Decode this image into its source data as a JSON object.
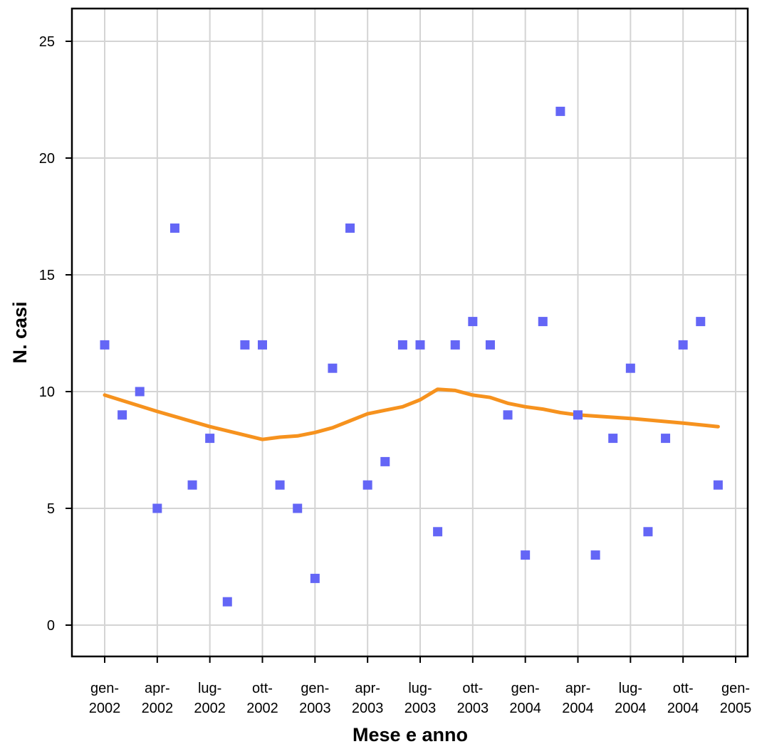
{
  "chart_data": {
    "type": "scatter",
    "xlabel": "Mese e anno",
    "ylabel": "N. casi",
    "ylim": [
      -2,
      26
    ],
    "yticks": [
      0,
      5,
      10,
      15,
      20,
      25
    ],
    "xlim": [
      "2001-11",
      "2005-02"
    ],
    "xticks": [
      {
        "date": "2002-01",
        "label": [
          "gen-",
          "2002"
        ]
      },
      {
        "date": "2002-04",
        "label": [
          "apr-",
          "2002"
        ]
      },
      {
        "date": "2002-07",
        "label": [
          "lug-",
          "2002"
        ]
      },
      {
        "date": "2002-10",
        "label": [
          "ott-",
          "2002"
        ]
      },
      {
        "date": "2003-01",
        "label": [
          "gen-",
          "2003"
        ]
      },
      {
        "date": "2003-04",
        "label": [
          "apr-",
          "2003"
        ]
      },
      {
        "date": "2003-07",
        "label": [
          "lug-",
          "2003"
        ]
      },
      {
        "date": "2003-10",
        "label": [
          "ott-",
          "2003"
        ]
      },
      {
        "date": "2004-01",
        "label": [
          "gen-",
          "2004"
        ]
      },
      {
        "date": "2004-04",
        "label": [
          "apr-",
          "2004"
        ]
      },
      {
        "date": "2004-07",
        "label": [
          "lug-",
          "2004"
        ]
      },
      {
        "date": "2004-10",
        "label": [
          "ott-",
          "2004"
        ]
      },
      {
        "date": "2005-01",
        "label": [
          "gen-",
          "2005"
        ]
      }
    ],
    "grid": true,
    "colors": {
      "points": "#6466f6",
      "trend": "#f6921e",
      "grid": "#d4d4d4",
      "axis": "#000000"
    },
    "series": [
      {
        "kind": "points",
        "x": [
          "2002-01",
          "2002-02",
          "2002-03",
          "2002-04",
          "2002-05",
          "2002-06",
          "2002-07",
          "2002-08",
          "2002-09",
          "2002-10",
          "2002-11",
          "2002-12",
          "2003-01",
          "2003-02",
          "2003-03",
          "2003-04",
          "2003-05",
          "2003-06",
          "2003-07",
          "2003-08",
          "2003-09",
          "2003-10",
          "2003-11",
          "2003-12",
          "2004-01",
          "2004-02",
          "2004-03",
          "2004-04",
          "2004-05",
          "2004-06",
          "2004-07",
          "2004-08",
          "2004-09",
          "2004-10",
          "2004-11",
          "2004-12"
        ],
        "y": [
          12,
          9,
          10,
          5,
          17,
          6,
          8,
          1,
          12,
          12,
          6,
          5,
          2,
          11,
          17,
          6,
          7,
          12,
          12,
          4,
          12,
          13,
          12,
          9,
          3,
          13,
          22,
          9,
          3,
          8,
          11,
          4,
          8,
          12,
          13,
          6
        ]
      },
      {
        "kind": "trend",
        "x": [
          "2002-01",
          "2002-04",
          "2002-07",
          "2002-10",
          "2002-11",
          "2002-12",
          "2003-01",
          "2003-02",
          "2003-03",
          "2003-04",
          "2003-05",
          "2003-06",
          "2003-07",
          "2003-08",
          "2003-09",
          "2003-10",
          "2003-11",
          "2003-12",
          "2004-01",
          "2004-02",
          "2004-03",
          "2004-04",
          "2004-07",
          "2004-10",
          "2004-12"
        ],
        "y": [
          9.85,
          9.15,
          8.5,
          7.95,
          8.05,
          8.1,
          8.25,
          8.45,
          8.75,
          9.05,
          9.2,
          9.35,
          9.65,
          10.1,
          10.05,
          9.85,
          9.75,
          9.5,
          9.35,
          9.25,
          9.1,
          9.0,
          8.85,
          8.65,
          8.5
        ]
      }
    ]
  }
}
